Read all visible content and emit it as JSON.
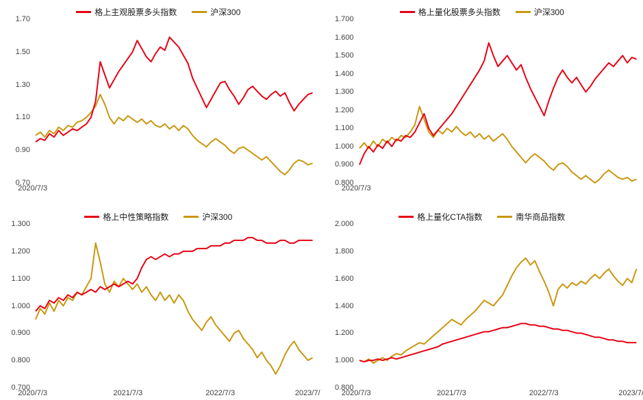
{
  "page": {
    "background": "#ffffff"
  },
  "chart_data": [
    {
      "type": "line",
      "grid": false,
      "legend_position": "top",
      "ylim": [
        0.7,
        1.7
      ],
      "ytick_labels": [
        "1.70",
        "1.50",
        "1.30",
        "1.10",
        "0.90",
        "0.70"
      ],
      "xtick_labels": [
        "2020/7/3"
      ],
      "series": [
        {
          "name": "格上主观股票多头指数",
          "color": "#e60012",
          "values": [
            0.95,
            0.97,
            0.96,
            1.0,
            0.98,
            1.02,
            0.99,
            1.01,
            1.03,
            1.02,
            1.04,
            1.06,
            1.1,
            1.2,
            1.44,
            1.36,
            1.28,
            1.33,
            1.38,
            1.42,
            1.46,
            1.5,
            1.57,
            1.52,
            1.47,
            1.44,
            1.49,
            1.53,
            1.51,
            1.59,
            1.56,
            1.53,
            1.48,
            1.43,
            1.34,
            1.28,
            1.22,
            1.16,
            1.21,
            1.26,
            1.31,
            1.32,
            1.27,
            1.23,
            1.18,
            1.22,
            1.27,
            1.29,
            1.26,
            1.23,
            1.21,
            1.24,
            1.26,
            1.23,
            1.25,
            1.19,
            1.14,
            1.18,
            1.21,
            1.24,
            1.25
          ]
        },
        {
          "name": "沪深300",
          "color": "#c9960e",
          "values": [
            0.99,
            1.01,
            0.98,
            1.02,
            1.0,
            1.04,
            1.02,
            1.05,
            1.04,
            1.07,
            1.08,
            1.1,
            1.13,
            1.17,
            1.24,
            1.18,
            1.1,
            1.06,
            1.1,
            1.08,
            1.11,
            1.09,
            1.07,
            1.09,
            1.06,
            1.08,
            1.05,
            1.04,
            1.06,
            1.03,
            1.05,
            1.02,
            1.05,
            1.03,
            0.99,
            0.96,
            0.94,
            0.92,
            0.95,
            0.97,
            0.95,
            0.93,
            0.9,
            0.88,
            0.91,
            0.92,
            0.9,
            0.88,
            0.86,
            0.84,
            0.86,
            0.83,
            0.8,
            0.77,
            0.75,
            0.78,
            0.82,
            0.84,
            0.83,
            0.81,
            0.82
          ]
        }
      ]
    },
    {
      "type": "line",
      "grid": false,
      "legend_position": "top",
      "ylim": [
        0.8,
        1.7
      ],
      "ytick_labels": [
        "1.700",
        "1.600",
        "1.500",
        "1.400",
        "1.300",
        "1.200",
        "1.100",
        "1.000",
        "0.900",
        "0.800"
      ],
      "xtick_labels": [
        "2020/7/3"
      ],
      "series": [
        {
          "name": "格上量化股票多头指数",
          "color": "#e60012",
          "values": [
            0.9,
            0.96,
            1.0,
            0.97,
            1.01,
            0.99,
            1.03,
            1.0,
            1.04,
            1.03,
            1.06,
            1.05,
            1.08,
            1.13,
            1.18,
            1.1,
            1.06,
            1.09,
            1.12,
            1.15,
            1.18,
            1.22,
            1.26,
            1.3,
            1.34,
            1.38,
            1.42,
            1.47,
            1.57,
            1.5,
            1.44,
            1.47,
            1.5,
            1.46,
            1.42,
            1.45,
            1.38,
            1.32,
            1.27,
            1.22,
            1.17,
            1.25,
            1.32,
            1.38,
            1.42,
            1.38,
            1.35,
            1.38,
            1.34,
            1.3,
            1.33,
            1.37,
            1.4,
            1.43,
            1.46,
            1.44,
            1.47,
            1.5,
            1.46,
            1.49,
            1.48
          ]
        },
        {
          "name": "沪深300",
          "color": "#c9960e",
          "values": [
            0.99,
            1.02,
            0.99,
            1.03,
            1.0,
            1.04,
            1.02,
            1.05,
            1.03,
            1.06,
            1.05,
            1.08,
            1.12,
            1.22,
            1.15,
            1.08,
            1.05,
            1.09,
            1.07,
            1.1,
            1.08,
            1.11,
            1.08,
            1.06,
            1.08,
            1.05,
            1.07,
            1.04,
            1.06,
            1.03,
            1.05,
            1.07,
            1.04,
            1.0,
            0.97,
            0.94,
            0.91,
            0.94,
            0.96,
            0.94,
            0.92,
            0.89,
            0.87,
            0.9,
            0.91,
            0.89,
            0.86,
            0.84,
            0.82,
            0.84,
            0.82,
            0.8,
            0.82,
            0.85,
            0.87,
            0.85,
            0.83,
            0.82,
            0.83,
            0.81,
            0.82
          ]
        }
      ]
    },
    {
      "type": "line",
      "grid": false,
      "legend_position": "top",
      "ylim": [
        0.7,
        1.3
      ],
      "ytick_labels": [
        "1.300",
        "1.200",
        "1.100",
        "1.000",
        "0.900",
        "0.800",
        "0.700"
      ],
      "xtick_labels": [
        "2020/7/3",
        "2021/7/3",
        "2022/7/3",
        "2023/7/"
      ],
      "series": [
        {
          "name": "格上中性策略指数",
          "color": "#e60012",
          "values": [
            0.98,
            1.0,
            0.99,
            1.02,
            1.01,
            1.03,
            1.02,
            1.04,
            1.03,
            1.05,
            1.04,
            1.05,
            1.06,
            1.05,
            1.07,
            1.06,
            1.07,
            1.08,
            1.07,
            1.08,
            1.09,
            1.08,
            1.1,
            1.14,
            1.17,
            1.18,
            1.17,
            1.18,
            1.19,
            1.18,
            1.19,
            1.19,
            1.2,
            1.2,
            1.2,
            1.21,
            1.21,
            1.21,
            1.22,
            1.22,
            1.22,
            1.23,
            1.23,
            1.24,
            1.24,
            1.24,
            1.25,
            1.25,
            1.24,
            1.24,
            1.23,
            1.23,
            1.23,
            1.24,
            1.24,
            1.23,
            1.23,
            1.24,
            1.24,
            1.24,
            1.24
          ]
        },
        {
          "name": "沪深300",
          "color": "#c9960e",
          "values": [
            0.95,
            0.99,
            0.97,
            1.01,
            0.98,
            1.02,
            1.0,
            1.03,
            1.02,
            1.05,
            1.04,
            1.07,
            1.1,
            1.23,
            1.16,
            1.08,
            1.05,
            1.09,
            1.07,
            1.1,
            1.08,
            1.06,
            1.08,
            1.05,
            1.07,
            1.04,
            1.02,
            1.05,
            1.02,
            1.04,
            1.01,
            1.04,
            1.02,
            0.98,
            0.95,
            0.93,
            0.91,
            0.94,
            0.96,
            0.93,
            0.91,
            0.89,
            0.87,
            0.9,
            0.91,
            0.88,
            0.86,
            0.84,
            0.81,
            0.83,
            0.8,
            0.78,
            0.75,
            0.78,
            0.82,
            0.85,
            0.87,
            0.84,
            0.82,
            0.8,
            0.81
          ]
        }
      ]
    },
    {
      "type": "line",
      "grid": false,
      "legend_position": "top",
      "ylim": [
        0.8,
        2.0
      ],
      "ytick_labels": [
        "2.000",
        "1.800",
        "1.600",
        "1.400",
        "1.200",
        "1.000",
        "0.800"
      ],
      "xtick_labels": [
        "2020/7/3",
        "2021/7/3",
        "2022/7/3",
        "2023/7/"
      ],
      "series": [
        {
          "name": "格上量化CTA指数",
          "color": "#e60012",
          "values": [
            1.0,
            0.99,
            1.0,
            1.0,
            1.01,
            1.0,
            1.01,
            1.02,
            1.01,
            1.02,
            1.03,
            1.04,
            1.05,
            1.06,
            1.07,
            1.08,
            1.09,
            1.1,
            1.12,
            1.13,
            1.14,
            1.15,
            1.16,
            1.17,
            1.18,
            1.19,
            1.2,
            1.21,
            1.21,
            1.22,
            1.23,
            1.24,
            1.24,
            1.25,
            1.26,
            1.27,
            1.27,
            1.26,
            1.26,
            1.25,
            1.25,
            1.24,
            1.23,
            1.23,
            1.22,
            1.22,
            1.21,
            1.2,
            1.2,
            1.19,
            1.18,
            1.17,
            1.17,
            1.16,
            1.15,
            1.15,
            1.14,
            1.14,
            1.13,
            1.13,
            1.13
          ]
        },
        {
          "name": "南华商品指数",
          "color": "#c9960e",
          "values": [
            1.0,
            0.99,
            1.01,
            0.98,
            1.0,
            1.02,
            1.0,
            1.03,
            1.05,
            1.04,
            1.07,
            1.09,
            1.11,
            1.13,
            1.12,
            1.15,
            1.18,
            1.21,
            1.24,
            1.27,
            1.3,
            1.28,
            1.26,
            1.3,
            1.33,
            1.36,
            1.4,
            1.44,
            1.42,
            1.4,
            1.44,
            1.48,
            1.55,
            1.62,
            1.68,
            1.72,
            1.75,
            1.7,
            1.73,
            1.65,
            1.58,
            1.5,
            1.4,
            1.52,
            1.56,
            1.53,
            1.57,
            1.55,
            1.58,
            1.56,
            1.6,
            1.63,
            1.6,
            1.64,
            1.67,
            1.62,
            1.58,
            1.55,
            1.6,
            1.57,
            1.67
          ]
        }
      ]
    }
  ]
}
